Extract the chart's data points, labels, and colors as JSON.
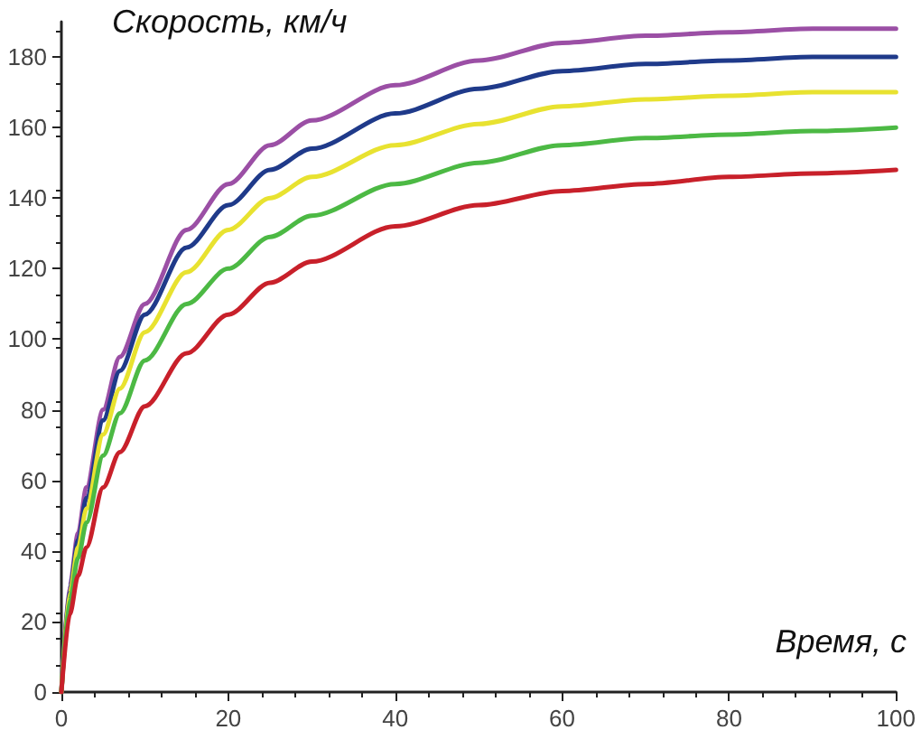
{
  "chart_data": {
    "type": "line",
    "xlabel": "Время, с",
    "ylabel": "Скорость, км/ч",
    "x": [
      0,
      1,
      2,
      3,
      5,
      7,
      10,
      15,
      20,
      25,
      30,
      40,
      50,
      60,
      70,
      80,
      90,
      100
    ],
    "series": [
      {
        "color": "#9b4fa5",
        "values": [
          0,
          30,
          45,
          58,
          80,
          95,
          110,
          131,
          144,
          155,
          162,
          172,
          179,
          184,
          186,
          187,
          188,
          188
        ]
      },
      {
        "color": "#1f3a8a",
        "values": [
          0,
          29,
          43,
          55,
          77,
          91,
          107,
          126,
          138,
          148,
          154,
          164,
          171,
          176,
          178,
          179,
          180,
          180
        ]
      },
      {
        "color": "#e8e230",
        "values": [
          0,
          28,
          41,
          52,
          73,
          86,
          102,
          119,
          131,
          140,
          146,
          155,
          161,
          166,
          168,
          169,
          170,
          170
        ]
      },
      {
        "color": "#4cb944",
        "values": [
          0,
          26,
          38,
          48,
          67,
          79,
          94,
          110,
          120,
          129,
          135,
          144,
          150,
          155,
          157,
          158,
          159,
          160
        ]
      },
      {
        "color": "#c8202a",
        "values": [
          0,
          22,
          33,
          41,
          58,
          68,
          81,
          96,
          107,
          116,
          122,
          132,
          138,
          142,
          144,
          146,
          147,
          148
        ]
      }
    ],
    "xlim": [
      0,
      100
    ],
    "xticks": [
      0,
      20,
      40,
      60,
      80,
      100
    ],
    "ylim": [
      0,
      190
    ],
    "yticks": [
      0,
      20,
      40,
      60,
      80,
      100,
      120,
      140,
      160,
      180
    ],
    "marker": "none",
    "line_style": "solid"
  }
}
